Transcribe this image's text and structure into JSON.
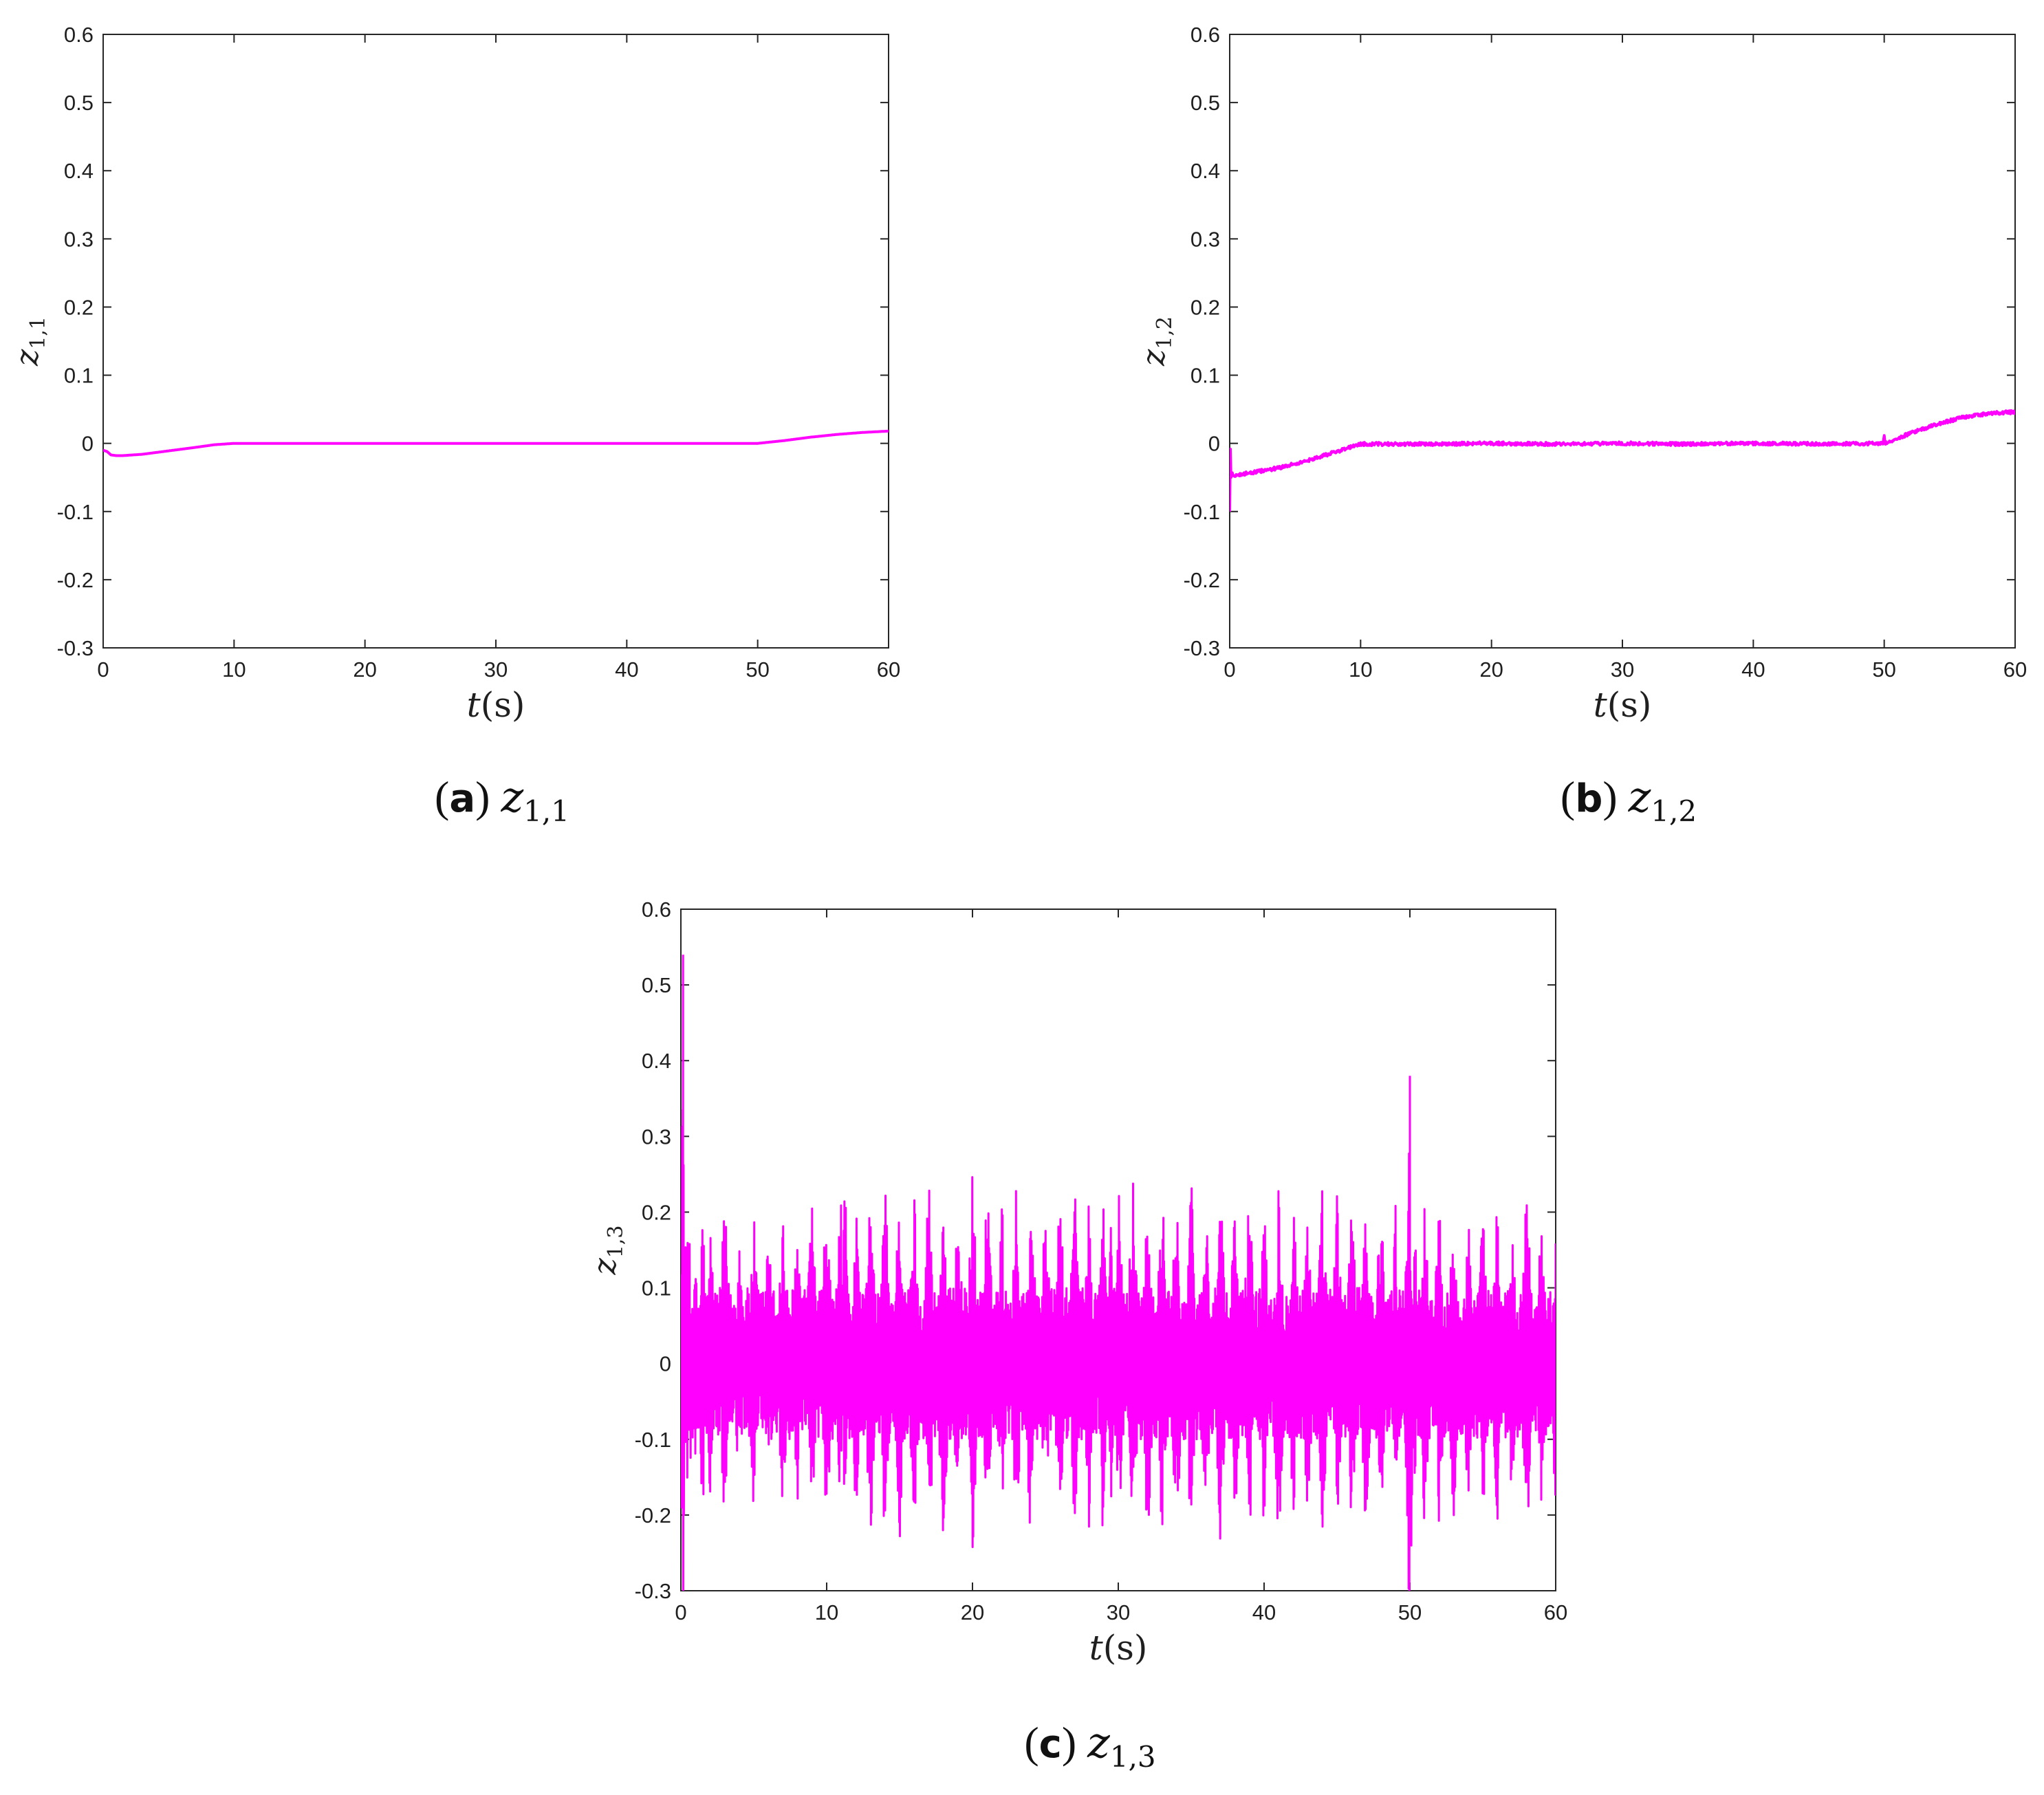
{
  "chart_data": [
    {
      "type": "line",
      "caption": {
        "letter": "a",
        "var": "z",
        "sub": "1,1"
      },
      "ylabel": {
        "var": "z",
        "sub": "1,1"
      },
      "xlabel": {
        "var": "t",
        "unit": "(s)"
      },
      "xlim": [
        0,
        60
      ],
      "ylim": [
        -0.3,
        0.6
      ],
      "xticks": [
        "0",
        "10",
        "20",
        "30",
        "40",
        "50",
        "60"
      ],
      "yticks": [
        "0.6",
        "0.5",
        "0.4",
        "0.3",
        "0.2",
        "0.1",
        "0",
        "-0.1",
        "-0.2",
        "-0.3"
      ],
      "color": "#ff00ff",
      "series": [
        {
          "x": [
            0,
            0.3,
            0.6,
            1,
            1.5,
            3,
            5,
            7,
            8.5,
            10,
            15,
            20,
            25,
            30,
            35,
            40,
            45,
            50,
            52,
            54,
            56,
            58,
            60
          ],
          "values": [
            -0.01,
            -0.012,
            -0.017,
            -0.018,
            -0.018,
            -0.016,
            -0.011,
            -0.006,
            -0.002,
            0,
            0,
            0,
            0,
            0,
            0,
            0,
            0,
            0,
            0.004,
            0.009,
            0.013,
            0.016,
            0.018
          ]
        }
      ]
    },
    {
      "type": "line",
      "caption": {
        "letter": "b",
        "var": "z",
        "sub": "1,2"
      },
      "ylabel": {
        "var": "z",
        "sub": "1,2"
      },
      "xlabel": {
        "var": "t",
        "unit": "(s)"
      },
      "xlim": [
        0,
        60
      ],
      "ylim": [
        -0.3,
        0.6
      ],
      "xticks": [
        "0",
        "10",
        "20",
        "30",
        "40",
        "50",
        "60"
      ],
      "yticks": [
        "0.6",
        "0.5",
        "0.4",
        "0.3",
        "0.2",
        "0.1",
        "0",
        "-0.1",
        "-0.2",
        "-0.3"
      ],
      "color": "#ff00ff",
      "series": [
        {
          "x": [
            0,
            0.05,
            0.1,
            0.2,
            0.3,
            1,
            2,
            4,
            6,
            8,
            10,
            15,
            20,
            25,
            30,
            35,
            40,
            45,
            49.9,
            50,
            50.1,
            52,
            54,
            56,
            58,
            60
          ],
          "values": [
            -0.1,
            -0.01,
            -0.05,
            -0.045,
            -0.048,
            -0.045,
            -0.042,
            -0.035,
            -0.025,
            -0.013,
            -0.001,
            -0.001,
            0,
            -0.001,
            0,
            -0.001,
            0,
            -0.001,
            0,
            0.01,
            0,
            0.015,
            0.028,
            0.038,
            0.044,
            0.046
          ]
        }
      ]
    },
    {
      "type": "line",
      "caption": {
        "letter": "c",
        "var": "z",
        "sub": "1,3"
      },
      "ylabel": {
        "var": "z",
        "sub": "1,3"
      },
      "xlabel": {
        "var": "t",
        "unit": "(s)"
      },
      "xlim": [
        0,
        60
      ],
      "ylim": [
        -0.3,
        0.6
      ],
      "xticks": [
        "0",
        "10",
        "20",
        "30",
        "40",
        "50",
        "60"
      ],
      "yticks": [
        "0.6",
        "0.5",
        "0.4",
        "0.3",
        "0.2",
        "0.1",
        "0",
        "-0.1",
        "-0.2",
        "-0.3"
      ],
      "color": "#ff00ff",
      "series": [
        {
          "x": [
            0,
            0.15,
            0.3,
            0.45,
            0.6,
            1,
            1.5,
            2,
            3,
            4,
            5,
            6,
            7,
            8,
            9,
            10,
            11,
            11.2,
            12,
            13,
            14,
            15,
            16,
            17,
            18,
            19,
            20,
            21,
            22,
            23,
            24,
            25,
            26,
            27,
            28,
            29,
            29.5,
            30,
            31,
            32,
            33,
            34,
            35,
            36,
            37,
            38,
            39,
            40,
            41,
            42,
            43,
            44,
            45,
            46,
            47,
            48,
            49,
            49.8,
            50,
            50.1,
            50.3,
            51,
            52,
            53,
            54,
            55,
            56,
            57,
            58,
            59,
            60
          ],
          "values": [
            0,
            0.54,
            -0.26,
            0.19,
            -0.2,
            0.16,
            -0.24,
            0.2,
            -0.22,
            0.18,
            -0.2,
            0.19,
            -0.21,
            0.2,
            -0.22,
            0.23,
            -0.24,
            0.275,
            -0.23,
            0.24,
            -0.25,
            0.25,
            -0.24,
            0.26,
            -0.25,
            0.24,
            -0.26,
            0.25,
            -0.23,
            0.24,
            -0.25,
            0.23,
            -0.24,
            0.25,
            -0.23,
            0.27,
            -0.24,
            0.25,
            -0.26,
            0.25,
            -0.24,
            0.24,
            -0.25,
            0.23,
            -0.24,
            0.23,
            -0.25,
            0.24,
            -0.25,
            0.25,
            -0.24,
            0.24,
            -0.23,
            0.24,
            -0.24,
            0.23,
            -0.22,
            0.2,
            0.38,
            -0.3,
            0.22,
            -0.23,
            0.22,
            -0.22,
            0.2,
            -0.21,
            0.22,
            -0.2,
            0.25,
            -0.19,
            0.19
          ]
        }
      ]
    }
  ]
}
